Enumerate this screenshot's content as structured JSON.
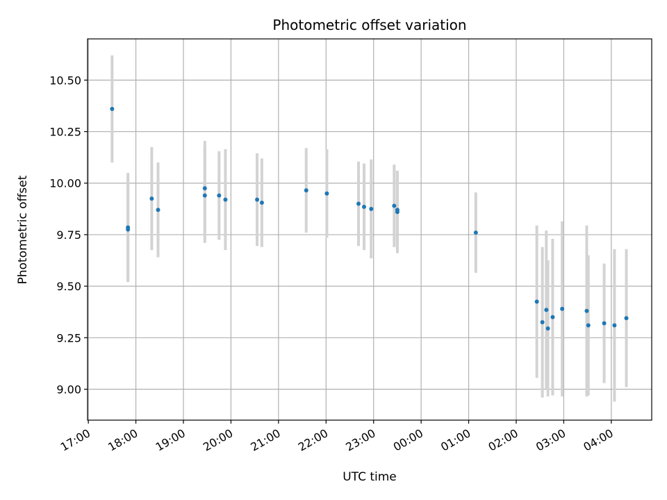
{
  "chart_data": {
    "type": "scatter",
    "title": "Photometric offset variation",
    "xlabel": "UTC time",
    "ylabel": "Photometric offset",
    "x_axis": "time",
    "x_ticks": [
      "17:00",
      "18:00",
      "19:00",
      "20:00",
      "21:00",
      "22:00",
      "23:00",
      "00:00",
      "01:00",
      "02:00",
      "03:00",
      "04:00"
    ],
    "x_range": [
      "16:59",
      "04:51"
    ],
    "y_ticks": [
      9.0,
      9.25,
      9.5,
      9.75,
      10.0,
      10.25,
      10.5
    ],
    "ylim": [
      8.85,
      10.7
    ],
    "grid": true,
    "colors": {
      "point": "#1f77b4",
      "errorbar": "#d3d3d3",
      "grid": "#b0b0b0"
    },
    "points": [
      {
        "x": "17:30",
        "y": 10.36,
        "err": 0.26
      },
      {
        "x": "17:50",
        "y": 9.785,
        "err": 0.265
      },
      {
        "x": "17:50",
        "y": 9.775,
        "err": 0.255
      },
      {
        "x": "18:20",
        "y": 9.925,
        "err": 0.25
      },
      {
        "x": "18:28",
        "y": 9.87,
        "err": 0.23
      },
      {
        "x": "19:27",
        "y": 9.975,
        "err": 0.23
      },
      {
        "x": "19:27",
        "y": 9.94,
        "err": 0.23
      },
      {
        "x": "19:45",
        "y": 9.94,
        "err": 0.215
      },
      {
        "x": "19:53",
        "y": 9.92,
        "err": 0.245
      },
      {
        "x": "20:33",
        "y": 9.92,
        "err": 0.225
      },
      {
        "x": "20:39",
        "y": 9.905,
        "err": 0.215
      },
      {
        "x": "21:35",
        "y": 9.965,
        "err": 0.205
      },
      {
        "x": "22:01",
        "y": 9.95,
        "err": 0.215
      },
      {
        "x": "22:41",
        "y": 9.9,
        "err": 0.205
      },
      {
        "x": "22:48",
        "y": 9.885,
        "err": 0.21
      },
      {
        "x": "22:57",
        "y": 9.875,
        "err": 0.24
      },
      {
        "x": "23:26",
        "y": 9.89,
        "err": 0.2
      },
      {
        "x": "23:30",
        "y": 9.87,
        "err": 0.19
      },
      {
        "x": "23:30",
        "y": 9.86,
        "err": 0.2
      },
      {
        "x": "01:09",
        "y": 9.76,
        "err": 0.195
      },
      {
        "x": "02:26",
        "y": 9.425,
        "err": 0.37
      },
      {
        "x": "02:33",
        "y": 9.325,
        "err": 0.365
      },
      {
        "x": "02:38",
        "y": 9.385,
        "err": 0.385
      },
      {
        "x": "02:40",
        "y": 9.295,
        "err": 0.33
      },
      {
        "x": "02:46",
        "y": 9.35,
        "err": 0.38
      },
      {
        "x": "02:58",
        "y": 9.39,
        "err": 0.425
      },
      {
        "x": "03:29",
        "y": 9.38,
        "err": 0.415
      },
      {
        "x": "03:31",
        "y": 9.31,
        "err": 0.34
      },
      {
        "x": "03:51",
        "y": 9.32,
        "err": 0.29
      },
      {
        "x": "04:04",
        "y": 9.31,
        "err": 0.37
      },
      {
        "x": "04:19",
        "y": 9.345,
        "err": 0.335
      }
    ]
  }
}
